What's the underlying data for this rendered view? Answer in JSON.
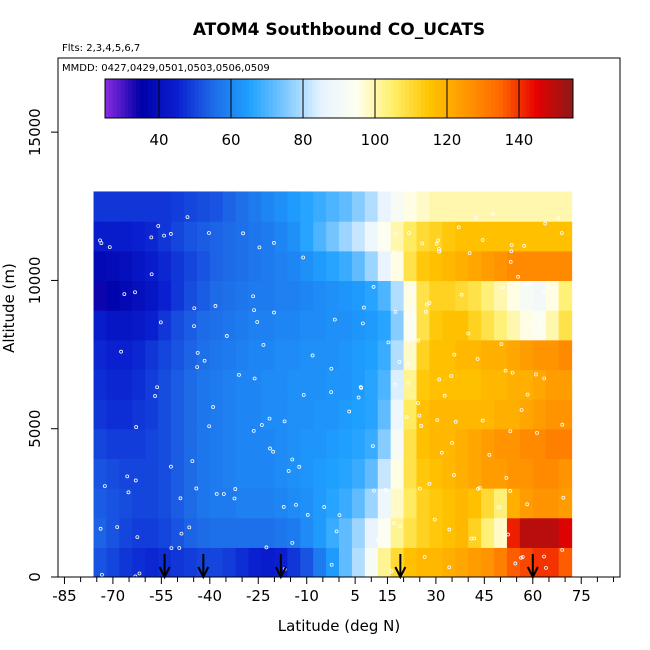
{
  "chart_data": {
    "type": "heatmap",
    "title": "ATOM4 Southbound CO_UCATS",
    "flights_note": "Flts: 2,3,4,5,6,7",
    "mmdd_note": "MMDD: 0427,0429,0501,0503,0506,0509",
    "xlabel": "Latitude (deg N)",
    "ylabel": "Altitude (m)",
    "xlim": [
      -87,
      87
    ],
    "ylim": [
      0,
      17500
    ],
    "x_ticks": [
      -85,
      -70,
      -55,
      -40,
      -25,
      -10,
      5,
      15,
      30,
      45,
      60,
      75
    ],
    "x_minor_ticks": [
      -80,
      -75,
      -65,
      -60,
      -50,
      -45,
      -35,
      -30,
      -20,
      -15,
      -5,
      0,
      10,
      20,
      25,
      35,
      40,
      50,
      55,
      65,
      70,
      80,
      85
    ],
    "y_ticks": [
      0,
      5000,
      10000,
      15000
    ],
    "colorbar": {
      "min": 25,
      "max": 155,
      "ticks": [
        40,
        60,
        80,
        100,
        120,
        140
      ],
      "colors": [
        "#8b2be2",
        "#0000a8",
        "#0a1fd0",
        "#1e6be8",
        "#1ea0ff",
        "#7cc8ff",
        "#e6f3ff",
        "#fffff0",
        "#ffef6a",
        "#ffc400",
        "#ff9900",
        "#ff6600",
        "#e60000",
        "#8b1a1a"
      ]
    },
    "arrows_latitude": [
      -54,
      -42,
      -18,
      19,
      60
    ],
    "lat_columns": [
      -74,
      -70,
      -66,
      -62,
      -58,
      -54,
      -50,
      -46,
      -42,
      -38,
      -34,
      -30,
      -26,
      -22,
      -18,
      -14,
      -10,
      -6,
      -2,
      2,
      6,
      10,
      14,
      18,
      22,
      26,
      30,
      34,
      38,
      42,
      46,
      50,
      54,
      58,
      62,
      66,
      70
    ],
    "alt_bins": [
      500,
      1500,
      2500,
      3500,
      4500,
      5500,
      6500,
      7500,
      8500,
      9500,
      10500,
      11500,
      12500
    ],
    "co_ppb_rows": [
      [
        52,
        50,
        48,
        47,
        46,
        47,
        48,
        49,
        50,
        50,
        49,
        47,
        45,
        44,
        45,
        48,
        52,
        58,
        64,
        72,
        80,
        92,
        102,
        110,
        116,
        118,
        118,
        120,
        122,
        124,
        126,
        130,
        136,
        138,
        140,
        140,
        136
      ],
      [
        54,
        52,
        50,
        49,
        49,
        50,
        52,
        54,
        55,
        56,
        56,
        56,
        56,
        56,
        57,
        58,
        61,
        64,
        68,
        72,
        78,
        86,
        94,
        102,
        108,
        112,
        114,
        116,
        118,
        112,
        104,
        98,
        142,
        150,
        150,
        150,
        146
      ],
      [
        53,
        52,
        51,
        50,
        50,
        51,
        53,
        55,
        57,
        58,
        58,
        59,
        59,
        59,
        60,
        61,
        62,
        64,
        66,
        68,
        72,
        78,
        88,
        98,
        106,
        112,
        114,
        116,
        118,
        116,
        110,
        104,
        120,
        124,
        126,
        126,
        124
      ],
      [
        52,
        51,
        50,
        50,
        50,
        51,
        53,
        55,
        57,
        58,
        59,
        60,
        60,
        60,
        61,
        62,
        63,
        64,
        65,
        66,
        68,
        72,
        82,
        96,
        108,
        114,
        116,
        118,
        120,
        122,
        124,
        124,
        126,
        126,
        128,
        128,
        126
      ],
      [
        50,
        49,
        49,
        49,
        50,
        51,
        53,
        55,
        57,
        58,
        59,
        60,
        60,
        60,
        61,
        62,
        63,
        63,
        64,
        65,
        66,
        68,
        76,
        92,
        108,
        116,
        118,
        118,
        120,
        122,
        124,
        126,
        126,
        128,
        128,
        130,
        130
      ],
      [
        48,
        47,
        47,
        48,
        49,
        51,
        53,
        55,
        57,
        58,
        59,
        60,
        60,
        61,
        61,
        62,
        62,
        63,
        63,
        64,
        65,
        66,
        72,
        88,
        106,
        116,
        118,
        118,
        118,
        118,
        118,
        120,
        120,
        122,
        124,
        126,
        126
      ],
      [
        47,
        46,
        46,
        47,
        49,
        51,
        53,
        55,
        57,
        58,
        59,
        60,
        60,
        61,
        61,
        62,
        62,
        62,
        63,
        63,
        64,
        66,
        70,
        84,
        102,
        114,
        116,
        116,
        116,
        116,
        118,
        118,
        120,
        120,
        122,
        124,
        124
      ],
      [
        46,
        45,
        45,
        46,
        48,
        50,
        52,
        54,
        56,
        57,
        58,
        59,
        60,
        60,
        61,
        61,
        62,
        62,
        62,
        63,
        64,
        65,
        68,
        80,
        98,
        112,
        116,
        116,
        118,
        118,
        120,
        120,
        122,
        124,
        126,
        126,
        128
      ],
      [
        44,
        42,
        42,
        43,
        45,
        48,
        51,
        53,
        55,
        56,
        57,
        58,
        59,
        59,
        60,
        60,
        61,
        61,
        62,
        62,
        63,
        64,
        66,
        76,
        94,
        108,
        114,
        116,
        116,
        112,
        108,
        104,
        100,
        96,
        94,
        100,
        108
      ],
      [
        34,
        36,
        38,
        40,
        42,
        45,
        48,
        51,
        53,
        55,
        56,
        57,
        58,
        58,
        59,
        59,
        60,
        61,
        62,
        63,
        64,
        66,
        70,
        80,
        96,
        108,
        112,
        112,
        110,
        108,
        104,
        100,
        96,
        92,
        90,
        96,
        104
      ],
      [
        38,
        39,
        40,
        42,
        44,
        46,
        48,
        50,
        52,
        54,
        55,
        56,
        57,
        58,
        59,
        60,
        62,
        64,
        66,
        68,
        72,
        78,
        86,
        96,
        108,
        114,
        116,
        118,
        120,
        122,
        124,
        126,
        128,
        128,
        128,
        128,
        128
      ],
      [
        44,
        44,
        44,
        45,
        46,
        48,
        50,
        52,
        53,
        54,
        55,
        56,
        57,
        58,
        60,
        62,
        66,
        70,
        74,
        78,
        82,
        88,
        94,
        100,
        106,
        110,
        112,
        114,
        116,
        116,
        116,
        116,
        116,
        116,
        116,
        116,
        116
      ],
      [
        48,
        48,
        48,
        48,
        48,
        48,
        49,
        50,
        51,
        52,
        54,
        56,
        58,
        60,
        62,
        64,
        66,
        68,
        70,
        72,
        76,
        80,
        86,
        92,
        96,
        98,
        100,
        100,
        100,
        100,
        100,
        100,
        100,
        100,
        100,
        100,
        100
      ]
    ]
  }
}
